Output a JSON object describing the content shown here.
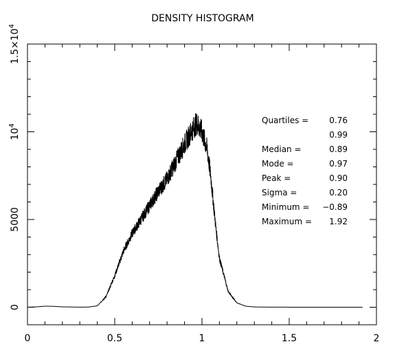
{
  "chart_data": {
    "type": "line",
    "title": "DENSITY HISTOGRAM",
    "xlabel": "",
    "ylabel": "",
    "xlim": [
      0,
      2
    ],
    "ylim": [
      -1000,
      15000
    ],
    "grid": false,
    "x_ticks": [
      {
        "value": 0,
        "label": "0"
      },
      {
        "value": 0.5,
        "label": "0.5"
      },
      {
        "value": 1,
        "label": "1"
      },
      {
        "value": 1.5,
        "label": "1.5"
      },
      {
        "value": 2,
        "label": "2"
      }
    ],
    "y_ticks": [
      {
        "value": 0,
        "label": "0"
      },
      {
        "value": 5000,
        "label": "5000"
      },
      {
        "value": 10000,
        "label": "10^4"
      },
      {
        "value": 15000,
        "label": "1.5×10^4"
      }
    ],
    "series": [
      {
        "x": [
          0.0,
          0.05,
          0.1,
          0.15,
          0.2,
          0.3,
          0.35,
          0.4,
          0.45,
          0.5,
          0.55,
          0.6,
          0.65,
          0.7,
          0.75,
          0.8,
          0.85,
          0.9,
          0.95,
          0.97,
          1.0,
          1.03,
          1.05,
          1.08,
          1.1,
          1.15,
          1.2,
          1.25,
          1.3,
          1.4,
          1.6,
          1.8,
          1.92
        ],
        "values": [
          0,
          20,
          60,
          50,
          20,
          5,
          10,
          80,
          600,
          1800,
          3200,
          4200,
          5000,
          5800,
          6600,
          7300,
          8300,
          9300,
          10200,
          10500,
          10000,
          9000,
          7500,
          4500,
          2800,
          900,
          250,
          60,
          15,
          5,
          0,
          0,
          0
        ]
      }
    ],
    "stats": [
      {
        "label": "Quartiles =",
        "value": "0.76"
      },
      {
        "label": "",
        "value": "0.99"
      },
      {
        "label": "Median =",
        "value": "0.89"
      },
      {
        "label": "Mode =",
        "value": "0.97"
      },
      {
        "label": "Peak =",
        "value": "0.90"
      },
      {
        "label": "Sigma =",
        "value": "0.20"
      },
      {
        "label": "Minimum =",
        "value": "−0.89"
      },
      {
        "label": "Maximum =",
        "value": "1.92"
      }
    ]
  }
}
